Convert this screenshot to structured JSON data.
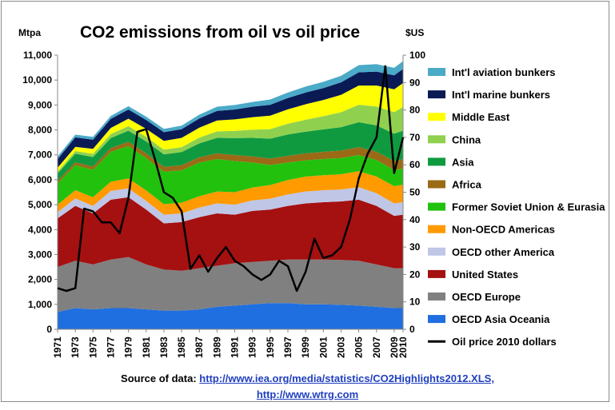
{
  "chart_data": {
    "type": "area",
    "title": "CO2 emissions from oil vs oil price",
    "left_axis_label": "Mtpa",
    "right_axis_label": "$US",
    "left_ylim": [
      0,
      11000
    ],
    "left_ticks": [
      "0",
      "1,000",
      "2,000",
      "3,000",
      "4,000",
      "5,000",
      "6,000",
      "7,000",
      "8,000",
      "9,000",
      "10,000",
      "11,000"
    ],
    "right_ylim": [
      0,
      100
    ],
    "right_ticks": [
      "0",
      "10",
      "20",
      "30",
      "40",
      "50",
      "60",
      "70",
      "80",
      "90",
      "100"
    ],
    "x_tick_labels": [
      "1971",
      "1973",
      "1975",
      "1977",
      "1979",
      "1981",
      "1983",
      "1985",
      "1987",
      "1989",
      "1991",
      "1993",
      "1995",
      "1997",
      "1999",
      "2001",
      "2003",
      "2005",
      "2007",
      "2009",
      "2010"
    ],
    "x_years": [
      1971,
      1973,
      1975,
      1977,
      1979,
      1981,
      1983,
      1985,
      1987,
      1989,
      1991,
      1993,
      1995,
      1997,
      1999,
      2001,
      2003,
      2005,
      2007,
      2009,
      2010
    ],
    "stacked_series": [
      {
        "name": "OECD Asia Oceania",
        "color": "#1f6fe0",
        "values": [
          700,
          850,
          800,
          850,
          850,
          800,
          750,
          750,
          800,
          900,
          950,
          1000,
          1050,
          1050,
          1000,
          1000,
          980,
          950,
          900,
          850,
          850
        ]
      },
      {
        "name": "OECD Europe",
        "color": "#808080",
        "values": [
          1800,
          1900,
          1800,
          1950,
          2050,
          1800,
          1650,
          1600,
          1650,
          1650,
          1700,
          1700,
          1700,
          1750,
          1800,
          1800,
          1800,
          1800,
          1700,
          1600,
          1600
        ]
      },
      {
        "name": "United States",
        "color": "#a51010",
        "values": [
          1950,
          2200,
          2050,
          2400,
          2400,
          2200,
          1850,
          1950,
          2050,
          2100,
          1950,
          2050,
          2050,
          2150,
          2250,
          2300,
          2350,
          2450,
          2350,
          2100,
          2150
        ]
      },
      {
        "name": "OECD other America",
        "color": "#bfc6e6",
        "values": [
          250,
          300,
          300,
          350,
          350,
          350,
          350,
          350,
          380,
          400,
          400,
          420,
          440,
          460,
          480,
          480,
          480,
          500,
          510,
          500,
          500
        ]
      },
      {
        "name": "Non-OECD Americas",
        "color": "#ff9a00",
        "values": [
          300,
          330,
          350,
          370,
          400,
          420,
          420,
          430,
          460,
          480,
          500,
          520,
          550,
          580,
          600,
          600,
          610,
          640,
          670,
          690,
          700
        ]
      },
      {
        "name": "Former Soviet Union & Eurasia",
        "color": "#22c10e",
        "values": [
          850,
          1000,
          1100,
          1200,
          1300,
          1300,
          1300,
          1300,
          1350,
          1300,
          1250,
          1000,
          800,
          700,
          650,
          650,
          650,
          650,
          660,
          650,
          650
        ]
      },
      {
        "name": "Africa",
        "color": "#9b6a16",
        "values": [
          100,
          120,
          130,
          150,
          170,
          190,
          200,
          200,
          210,
          230,
          240,
          250,
          260,
          270,
          280,
          290,
          300,
          320,
          340,
          360,
          370
        ]
      },
      {
        "name": "Asia",
        "color": "#109a40",
        "values": [
          300,
          350,
          380,
          400,
          450,
          480,
          500,
          530,
          560,
          620,
          680,
          740,
          800,
          860,
          870,
          900,
          940,
          1000,
          1050,
          1100,
          1150
        ]
      },
      {
        "name": "China",
        "color": "#8fd14f",
        "values": [
          80,
          100,
          130,
          160,
          180,
          180,
          190,
          200,
          230,
          260,
          290,
          330,
          380,
          430,
          480,
          530,
          600,
          700,
          760,
          860,
          950
        ]
      },
      {
        "name": "Middle East",
        "color": "#ffff00",
        "values": [
          150,
          170,
          200,
          250,
          300,
          320,
          350,
          370,
          400,
          440,
          460,
          500,
          540,
          580,
          620,
          650,
          700,
          770,
          840,
          920,
          960
        ]
      },
      {
        "name": "Int'l marine bunkers",
        "color": "#0a1a55",
        "values": [
          350,
          380,
          370,
          360,
          370,
          360,
          350,
          350,
          370,
          380,
          400,
          420,
          440,
          450,
          470,
          480,
          500,
          530,
          560,
          560,
          570
        ]
      },
      {
        "name": "Int'l aviation bunkers",
        "color": "#4aaac8",
        "values": [
          100,
          110,
          110,
          120,
          130,
          130,
          130,
          140,
          150,
          170,
          180,
          190,
          210,
          220,
          240,
          250,
          260,
          290,
          300,
          300,
          310
        ]
      }
    ],
    "line_series": {
      "name": "Oil price 2010 dollars",
      "color": "#000000",
      "axis": "right",
      "x": [
        1971,
        1972,
        1973,
        1974,
        1975,
        1976,
        1977,
        1978,
        1979,
        1980,
        1981,
        1982,
        1983,
        1984,
        1985,
        1986,
        1987,
        1988,
        1989,
        1990,
        1991,
        1992,
        1993,
        1994,
        1995,
        1996,
        1997,
        1998,
        1999,
        2000,
        2001,
        2002,
        2003,
        2004,
        2005,
        2006,
        2007,
        2008,
        2009,
        2010
      ],
      "values": [
        15,
        14,
        15,
        44,
        43,
        39,
        39,
        35,
        48,
        72,
        73,
        62,
        50,
        48,
        43,
        22,
        27,
        21,
        26,
        30,
        25,
        23,
        20,
        18,
        20,
        25,
        23,
        14,
        21,
        33,
        26,
        27,
        30,
        40,
        55,
        64,
        70,
        96,
        57,
        70
      ]
    },
    "legend_position": "right",
    "source_label": "Source of data:",
    "source_url_1": "http://www.iea.org/media/statistics/CO2Highlights2012.XLS,",
    "source_url_2": "http://www.wtrg.com"
  }
}
